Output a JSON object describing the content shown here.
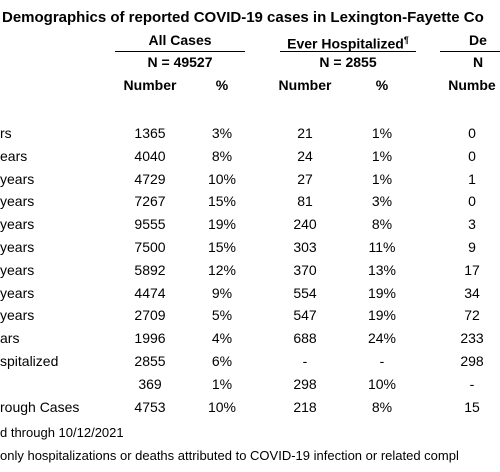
{
  "title": "Demographics of reported COVID-19 cases in Lexington-Fayette Co",
  "column_groups": [
    {
      "label": "All Cases",
      "n": "N = 49527"
    },
    {
      "label": "Ever Hospitalized",
      "note": "¶",
      "n": "N = 2855"
    },
    {
      "label": "De",
      "n": "N"
    }
  ],
  "column_headers": [
    "Number",
    "%",
    "Number",
    "%",
    "Numbe"
  ],
  "rows": [
    {
      "label": "rs",
      "cells": [
        "1365",
        "3%",
        "21",
        "1%",
        "0"
      ]
    },
    {
      "label": "ears",
      "cells": [
        "4040",
        "8%",
        "24",
        "1%",
        "0"
      ]
    },
    {
      "label": "years",
      "cells": [
        "4729",
        "10%",
        "27",
        "1%",
        "1"
      ]
    },
    {
      "label": "years",
      "cells": [
        "7267",
        "15%",
        "81",
        "3%",
        "0"
      ]
    },
    {
      "label": "years",
      "cells": [
        "9555",
        "19%",
        "240",
        "8%",
        "3"
      ]
    },
    {
      "label": "years",
      "cells": [
        "7500",
        "15%",
        "303",
        "11%",
        "9"
      ]
    },
    {
      "label": "years",
      "cells": [
        "5892",
        "12%",
        "370",
        "13%",
        "17"
      ]
    },
    {
      "label": "years",
      "cells": [
        "4474",
        "9%",
        "554",
        "19%",
        "34"
      ]
    },
    {
      "label": "years",
      "cells": [
        "2709",
        "5%",
        "547",
        "19%",
        "72"
      ]
    },
    {
      "label": "ars",
      "cells": [
        "1996",
        "4%",
        "688",
        "24%",
        "233"
      ]
    },
    {
      "label": "spitalized",
      "cells": [
        "2855",
        "6%",
        "-",
        "-",
        "298"
      ]
    },
    {
      "label": null,
      "cells": [
        "369",
        "1%",
        "298",
        "10%",
        "-"
      ]
    },
    {
      "label": "rough Cases",
      "cells": [
        "4753",
        "10%",
        "218",
        "8%",
        "15"
      ]
    }
  ],
  "footnotes": [
    "d through 10/12/2021",
    "only hospitalizations or deaths attributed to COVID-19 infection or related compl"
  ]
}
